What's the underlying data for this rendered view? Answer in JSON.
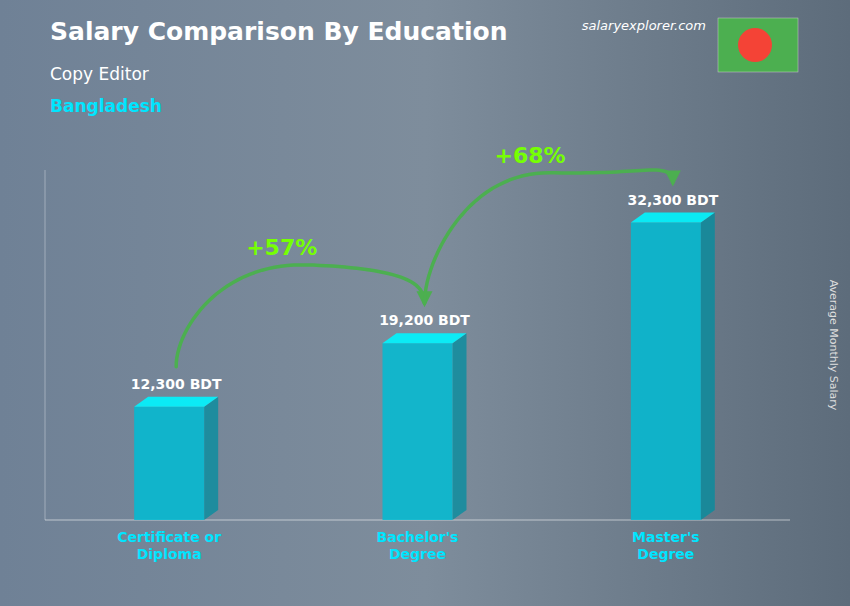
{
  "chart_data": {
    "type": "bar",
    "title": "Salary Comparison By Education",
    "subtitle": "Copy Editor",
    "annotations": [
      "Bangladesh",
      "+57%",
      "+68%",
      "salaryexplorer.com"
    ],
    "ylabel": "Average Monthly Salary",
    "categories": [
      "Certificate or\nDiploma",
      "Bachelor's\nDegree",
      "Master's\nDegree"
    ],
    "values": [
      12300,
      19200,
      32300
    ],
    "value_labels": [
      "12,300 BDT",
      "19,200 BDT",
      "32,300 BDT"
    ],
    "data_labels": true,
    "color": "#00bcd4",
    "ylim": [
      0,
      38000
    ],
    "tick_labels": "x",
    "grid": false
  }
}
